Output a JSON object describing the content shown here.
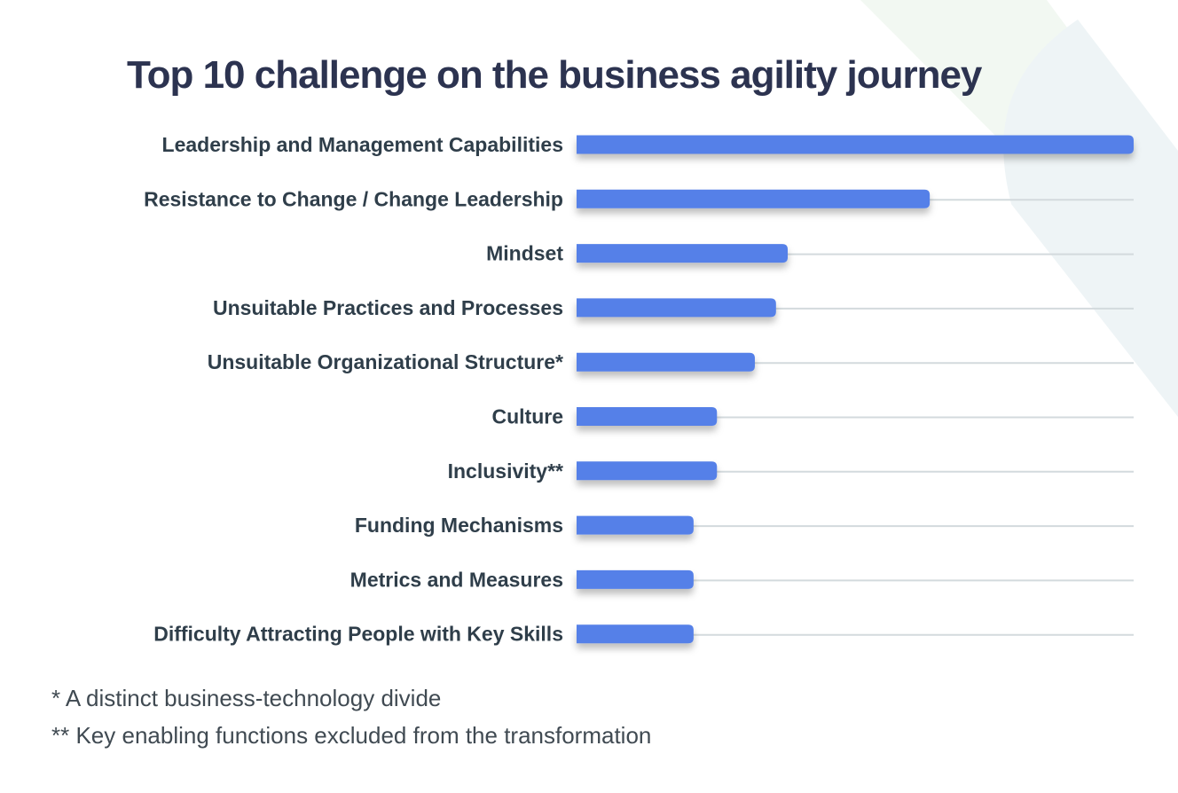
{
  "chart_data": {
    "type": "bar",
    "orientation": "horizontal",
    "title": "Top 10 challenge on the business agility journey",
    "categories": [
      "Leadership and Management Capabilities",
      "Resistance to Change / Change Leadership",
      "Mindset",
      "Unsuitable Practices and Processes",
      "Unsuitable Organizational Structure*",
      "Culture",
      "Inclusivity**",
      "Funding Mechanisms",
      "Metrics and Measures",
      "Difficulty Attracting People with Key Skills"
    ],
    "values": [
      100,
      63.4,
      37.9,
      35.8,
      32.0,
      25.2,
      25.2,
      21.0,
      21.0,
      21.0
    ],
    "value_scale": "relative, largest = 100 (no axis printed)",
    "xlim": [
      0,
      100
    ],
    "grid": true,
    "bar_color": "#5580e8",
    "footnotes": [
      "* A distinct business-technology divide",
      "** Key enabling functions excluded from the transformation"
    ]
  }
}
